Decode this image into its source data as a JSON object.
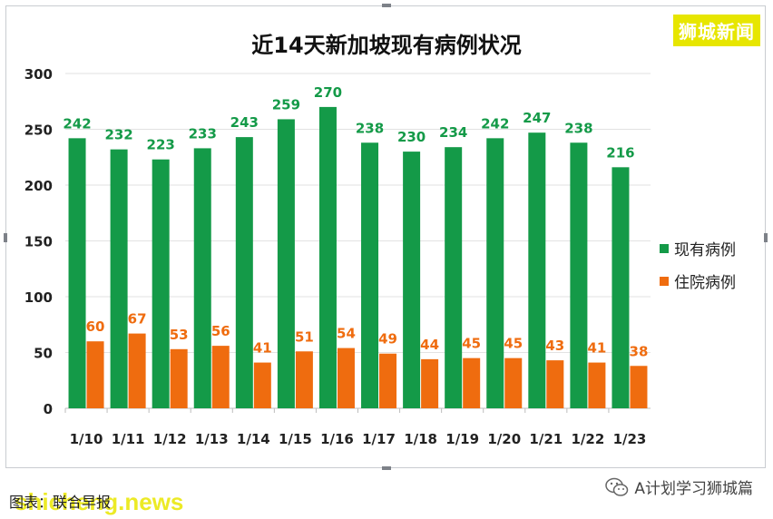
{
  "brand": "狮城新闻",
  "source_label": "图表：联合早报",
  "watermark": "shicheng.news",
  "wechat_account": "A计划学习狮城篇",
  "colors": {
    "series1": "#149a48",
    "series2": "#ef6c0f",
    "brand": "#e7e600"
  },
  "chart_data": {
    "type": "bar",
    "title": "近14天新加坡现有病例状况",
    "categories": [
      "1/10",
      "1/11",
      "1/12",
      "1/13",
      "1/14",
      "1/15",
      "1/16",
      "1/17",
      "1/18",
      "1/19",
      "1/20",
      "1/21",
      "1/22",
      "1/23"
    ],
    "series": [
      {
        "name": "现有病例",
        "values": [
          242,
          232,
          223,
          233,
          243,
          259,
          270,
          238,
          230,
          234,
          242,
          247,
          238,
          216
        ]
      },
      {
        "name": "住院病例",
        "values": [
          60,
          67,
          53,
          56,
          41,
          51,
          54,
          49,
          44,
          45,
          45,
          43,
          41,
          38
        ]
      }
    ],
    "y_ticks": [
      0,
      50,
      100,
      150,
      200,
      250,
      300
    ],
    "ylim": [
      0,
      300
    ],
    "grid": true,
    "legend_position": "right"
  }
}
